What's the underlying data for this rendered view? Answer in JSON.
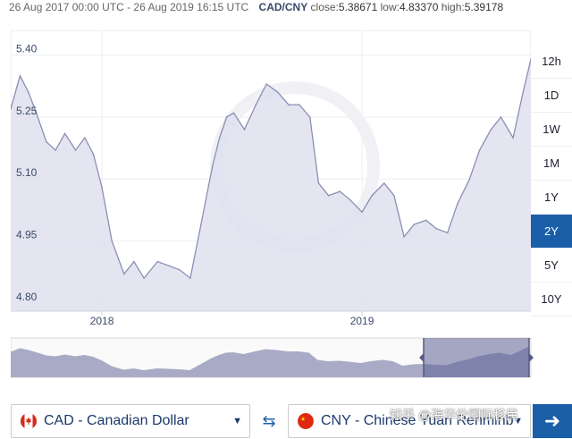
{
  "header": {
    "range": "26 Aug 2017 00:00 UTC - 26 Aug 2019 16:15 UTC",
    "pair": "CAD/CNY",
    "close_label": "close:",
    "close_value": "5.38671",
    "low_label": "low:",
    "low_value": "4.83370",
    "high_label": "high:",
    "high_value": "5.39178"
  },
  "periods": [
    "12h",
    "1D",
    "1W",
    "1M",
    "1Y",
    "2Y",
    "5Y",
    "10Y"
  ],
  "active_period": "2Y",
  "colors": {
    "accent": "#1b5ea8",
    "line": "#8b8fb3",
    "fill": "#dfe0ee",
    "navigator_fill": "#a9abc6",
    "navigator_selected": "#5c6194"
  },
  "footer": {
    "from_label": "CAD - Canadian Dollar",
    "to_label": "CNY - Chinese Yuan Renminbi",
    "swap_icon": "swap-arrows-icon",
    "go_icon": "arrow-right-icon",
    "watermark": "知乎 @海华伦国际移民"
  },
  "chart_data": {
    "type": "area",
    "title": "",
    "xlabel": "",
    "ylabel": "",
    "ylim": [
      4.78,
      5.46
    ],
    "xlim": [
      "2017-08-26",
      "2019-08-26"
    ],
    "yticks": [
      5.4,
      5.25,
      5.1,
      4.95,
      4.8
    ],
    "ytick_labels": [
      "5.40",
      "5.25",
      "5.10",
      "4.95",
      "4.80"
    ],
    "xticks": [
      "2018-01-01",
      "2019-01-01"
    ],
    "xtick_labels": [
      "2018",
      "2019"
    ],
    "grid": true,
    "series": [
      {
        "x": [
          "2017-08-26",
          "2017-09-08",
          "2017-09-20",
          "2017-10-01",
          "2017-10-15",
          "2017-10-28",
          "2017-11-10",
          "2017-11-25",
          "2017-12-08",
          "2017-12-20",
          "2018-01-01",
          "2018-01-15",
          "2018-02-01",
          "2018-02-15",
          "2018-03-01",
          "2018-03-20",
          "2018-04-05",
          "2018-04-20",
          "2018-05-05",
          "2018-05-20",
          "2018-06-05",
          "2018-06-15",
          "2018-06-25",
          "2018-07-05",
          "2018-07-20",
          "2018-08-05",
          "2018-08-20",
          "2018-09-05",
          "2018-09-20",
          "2018-10-05",
          "2018-10-20",
          "2018-11-01",
          "2018-11-15",
          "2018-12-01",
          "2018-12-15",
          "2019-01-01",
          "2019-01-15",
          "2019-02-01",
          "2019-02-15",
          "2019-03-01",
          "2019-03-15",
          "2019-04-01",
          "2019-04-15",
          "2019-05-01",
          "2019-05-15",
          "2019-06-01",
          "2019-06-15",
          "2019-07-01",
          "2019-07-15",
          "2019-08-01",
          "2019-08-15",
          "2019-08-26"
        ],
        "y": [
          5.27,
          5.35,
          5.31,
          5.26,
          5.19,
          5.17,
          5.21,
          5.17,
          5.2,
          5.16,
          5.08,
          4.95,
          4.87,
          4.9,
          4.86,
          4.9,
          4.89,
          4.88,
          4.86,
          4.99,
          5.13,
          5.2,
          5.25,
          5.26,
          5.22,
          5.28,
          5.33,
          5.31,
          5.28,
          5.28,
          5.25,
          5.09,
          5.06,
          5.07,
          5.05,
          5.02,
          5.06,
          5.09,
          5.06,
          4.96,
          4.99,
          5.0,
          4.98,
          4.97,
          5.04,
          5.1,
          5.17,
          5.22,
          5.25,
          5.2,
          5.31,
          5.39
        ]
      }
    ]
  }
}
